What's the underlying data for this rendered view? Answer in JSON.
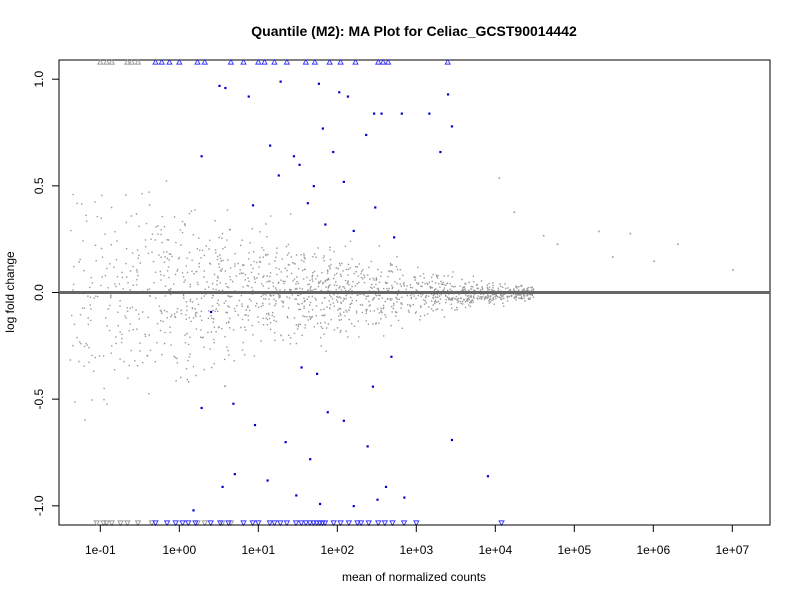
{
  "chart_data": {
    "type": "scatter",
    "title": "Quantile (M2): MA Plot for Celiac_GCST90014442",
    "xlabel": "mean of normalized counts",
    "ylabel": "log fold change",
    "x_scale": "log10",
    "xlim": [
      0.03,
      30000000
    ],
    "ylim": [
      -1.09,
      1.09
    ],
    "x_ticks": [
      0.1,
      1,
      10,
      100,
      1000,
      10000,
      100000,
      1000000,
      10000000
    ],
    "x_tick_labels": [
      "1e-01",
      "1e+00",
      "1e+01",
      "1e+02",
      "1e+03",
      "1e+04",
      "1e+05",
      "1e+06",
      "1e+07"
    ],
    "y_ticks": [
      -1.0,
      -0.5,
      0.0,
      0.5,
      1.0
    ],
    "y_tick_labels": [
      "-1.0",
      "-0.5",
      "0.0",
      "0.5",
      "1.0"
    ],
    "reference_line": {
      "y": 0,
      "color": "#666666"
    },
    "grid": false,
    "colors": {
      "non_significant": "#999999",
      "significant": "#0000cc",
      "out_of_range_significant": "#3333ff"
    },
    "series": [
      {
        "role": "non-significant genes (density cloud)",
        "approximate_count": 22000,
        "x_range": [
          0.04,
          30000
        ],
        "y_center": 0.0,
        "y_spread_at_low_counts": 0.95,
        "y_spread_at_high_counts": 0.05
      },
      {
        "role": "non-significant sparse high-count points",
        "points": [
          [
            11000,
            0.54
          ],
          [
            17000,
            0.38
          ],
          [
            40000,
            0.27
          ],
          [
            60000,
            0.23
          ],
          [
            200000,
            0.29
          ],
          [
            500000,
            0.28
          ],
          [
            2000000,
            0.23
          ],
          [
            10000000,
            0.11
          ],
          [
            300000,
            0.17
          ],
          [
            1000000,
            0.15
          ]
        ]
      },
      {
        "role": "significant genes (selected visible points)",
        "points": [
          [
            3.2,
            0.97
          ],
          [
            3.8,
            0.96
          ],
          [
            7.5,
            0.92
          ],
          [
            19,
            0.99
          ],
          [
            58,
            0.98
          ],
          [
            105,
            0.94
          ],
          [
            135,
            0.92
          ],
          [
            290,
            0.84
          ],
          [
            650,
            0.84
          ],
          [
            1450,
            0.84
          ],
          [
            2500,
            0.93
          ],
          [
            2800,
            0.78
          ],
          [
            2000,
            0.66
          ],
          [
            230,
            0.74
          ],
          [
            360,
            0.84
          ],
          [
            1.9,
            0.64
          ],
          [
            14,
            0.69
          ],
          [
            28,
            0.64
          ],
          [
            65,
            0.77
          ],
          [
            18,
            0.55
          ],
          [
            33,
            0.6
          ],
          [
            88,
            0.66
          ],
          [
            50,
            0.5
          ],
          [
            120,
            0.52
          ],
          [
            300,
            0.4
          ],
          [
            520,
            0.26
          ],
          [
            8.5,
            0.41
          ],
          [
            42,
            0.42
          ],
          [
            70,
            0.32
          ],
          [
            160,
            0.29
          ],
          [
            2.5,
            -0.09
          ],
          [
            35,
            -0.35
          ],
          [
            55,
            -0.38
          ],
          [
            280,
            -0.44
          ],
          [
            480,
            -0.3
          ],
          [
            1.9,
            -0.54
          ],
          [
            4.8,
            -0.52
          ],
          [
            9,
            -0.62
          ],
          [
            22,
            -0.7
          ],
          [
            45,
            -0.78
          ],
          [
            75,
            -0.56
          ],
          [
            120,
            -0.6
          ],
          [
            240,
            -0.72
          ],
          [
            410,
            -0.91
          ],
          [
            2800,
            -0.69
          ],
          [
            5,
            -0.85
          ],
          [
            13,
            -0.88
          ],
          [
            30,
            -0.95
          ],
          [
            60,
            -0.99
          ],
          [
            160,
            -1.0
          ],
          [
            320,
            -0.97
          ],
          [
            700,
            -0.96
          ],
          [
            8000,
            -0.86
          ],
          [
            1.5,
            -1.02
          ],
          [
            3.5,
            -0.91
          ]
        ]
      }
    ],
    "clipped_markers": {
      "top_y": 1.08,
      "bottom_y": -1.08,
      "top_grey_x": [
        0.1,
        0.12,
        0.14,
        0.22,
        0.25,
        0.3
      ],
      "top_blue_x": [
        0.5,
        0.6,
        0.75,
        1.0,
        1.7,
        2.1,
        4.5,
        6.5,
        10,
        12,
        16,
        23,
        40,
        52,
        80,
        110,
        170,
        330,
        380,
        440,
        2500
      ],
      "bottom_grey_x": [
        0.09,
        0.11,
        0.12,
        0.14,
        0.18,
        0.22,
        0.3,
        0.45,
        1.7,
        2.1,
        3.5,
        4.5
      ],
      "bottom_blue_x": [
        0.5,
        0.7,
        0.9,
        1.1,
        1.3,
        1.6,
        2.5,
        3.3,
        4.2,
        6.5,
        8.5,
        10,
        14,
        16,
        19,
        23,
        30,
        35,
        40,
        45,
        50,
        55,
        60,
        65,
        70,
        90,
        110,
        140,
        180,
        200,
        250,
        330,
        400,
        500,
        700,
        1000,
        12000
      ]
    }
  }
}
